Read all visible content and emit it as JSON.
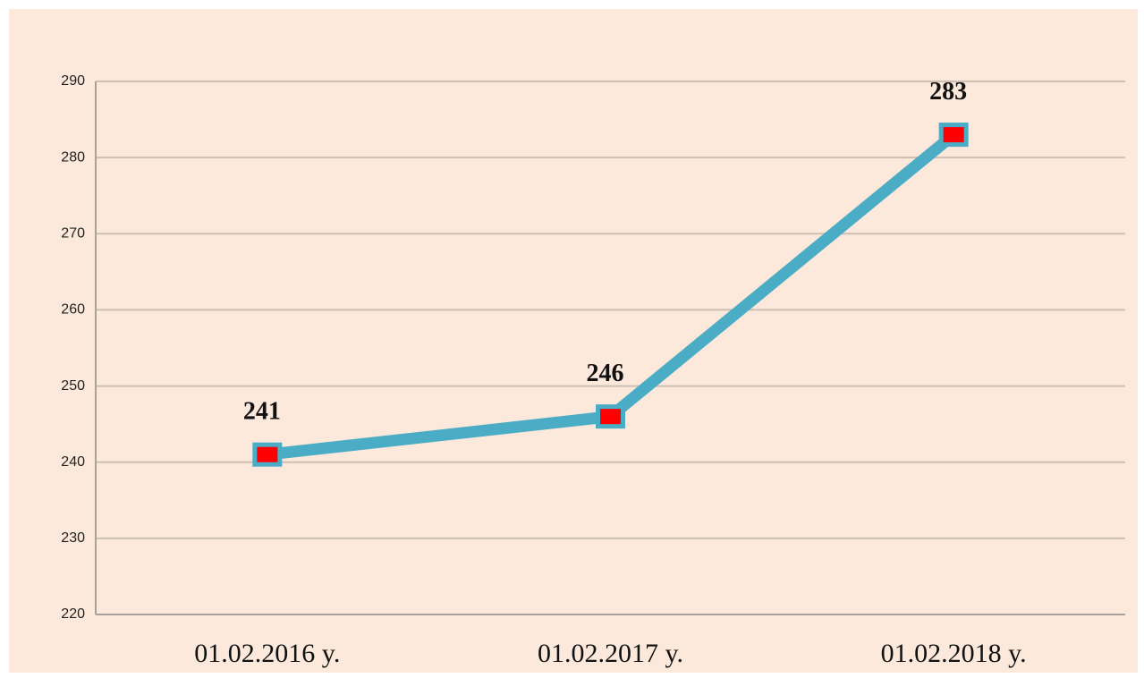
{
  "chart_data": {
    "type": "line",
    "categories": [
      "01.02.2016 y.",
      "01.02.2017 y.",
      "01.02.2018 y."
    ],
    "values": [
      241,
      246,
      283
    ],
    "color": "#4bacc6",
    "marker_color": "#ff0000",
    "ylim": [
      220,
      290
    ],
    "yticks": [
      220,
      230,
      240,
      250,
      260,
      270,
      280,
      290
    ],
    "grid": true
  }
}
